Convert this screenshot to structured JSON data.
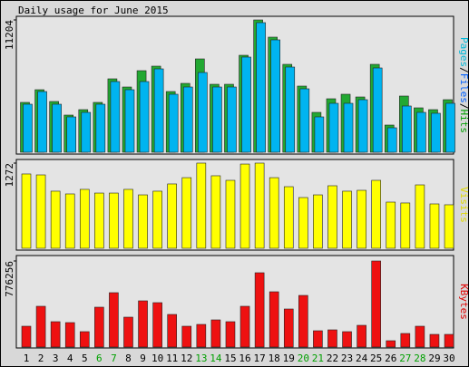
{
  "chart_data": {
    "type": "bar",
    "title": "Daily usage for June 2015",
    "categories": [
      "1",
      "2",
      "3",
      "4",
      "5",
      "6",
      "7",
      "8",
      "9",
      "10",
      "11",
      "12",
      "13",
      "14",
      "15",
      "16",
      "17",
      "18",
      "19",
      "20",
      "21",
      "22",
      "23",
      "24",
      "25",
      "26",
      "27",
      "28",
      "29",
      "30"
    ],
    "category_label_colors": [
      "#000000",
      "#000000",
      "#000000",
      "#000000",
      "#000000",
      "#00a000",
      "#00a000",
      "#000000",
      "#000000",
      "#000000",
      "#000000",
      "#000000",
      "#00a000",
      "#00a000",
      "#000000",
      "#000000",
      "#000000",
      "#000000",
      "#000000",
      "#00a000",
      "#00a000",
      "#000000",
      "#000000",
      "#000000",
      "#000000",
      "#000000",
      "#00a000",
      "#00a000",
      "#000000",
      "#000000"
    ],
    "panels": [
      {
        "label_parts": [
          {
            "text": "Pages",
            "color": "#00b8d8"
          },
          {
            "text": "/",
            "color": "#000000"
          },
          {
            "text": "Files",
            "color": "#0060ff"
          },
          {
            "text": "/",
            "color": "#000000"
          },
          {
            "text": "Hits",
            "color": "#00a000"
          }
        ],
        "ylim": [
          0,
          11204
        ],
        "yticks": [
          11204
        ],
        "series": [
          {
            "color": "#22a832",
            "values": [
              4221,
              5295,
              4297,
              3146,
              3607,
              4221,
              6216,
              5525,
              6907,
              7290,
              5141,
              5832,
              7904,
              5755,
              5755,
              8211,
              11204,
              9746,
              7444,
              5602,
              3376,
              4528,
              4911,
              4681,
              7444,
              2302,
              4758,
              3760,
              3607,
              4451
            ]
          },
          {
            "color": "#00b4f0",
            "values": [
              4067,
              5141,
              4067,
              2993,
              3376,
              4067,
              5986,
              5295,
              5986,
              7060,
              4911,
              5525,
              6753,
              5525,
              5525,
              8058,
              10974,
              9516,
              7214,
              5372,
              2993,
              4144,
              4144,
              4451,
              7137,
              2072,
              3914,
              3376,
              3300,
              4144
            ]
          }
        ]
      },
      {
        "label_parts": [
          {
            "text": "Visits",
            "color": "#e0d800"
          }
        ],
        "ylim": [
          0,
          1272
        ],
        "yticks": [
          1272
        ],
        "series": [
          {
            "color": "#ffff00",
            "values": [
              1110,
              1096,
              853,
              812,
              880,
              825,
              825,
              880,
              798,
              853,
              961,
              1055,
              1272,
              1083,
              1015,
              1258,
              1272,
              1055,
              920,
              758,
              798,
              934,
              853,
              866,
              1015,
              690,
              677,
              947,
              663,
              650
            ]
          }
        ]
      },
      {
        "label_parts": [
          {
            "text": "KBytes",
            "color": "#e00000"
          }
        ],
        "ylim": [
          0,
          776256
        ],
        "yticks": [
          776256
        ],
        "series": [
          {
            "color": "#ee1111",
            "values": [
              187934,
              367737,
              228790,
              220617,
              138905,
              359565,
              490303,
              269646,
              416764,
              400422,
              294159,
              187934,
              204277,
              245133,
              228790,
              367737,
              670063,
              498474,
              343193,
              465759,
              147077,
              155251,
              138905,
              196106,
              776256,
              57198,
              122563,
              187934,
              114392,
              114392
            ]
          }
        ]
      }
    ]
  }
}
